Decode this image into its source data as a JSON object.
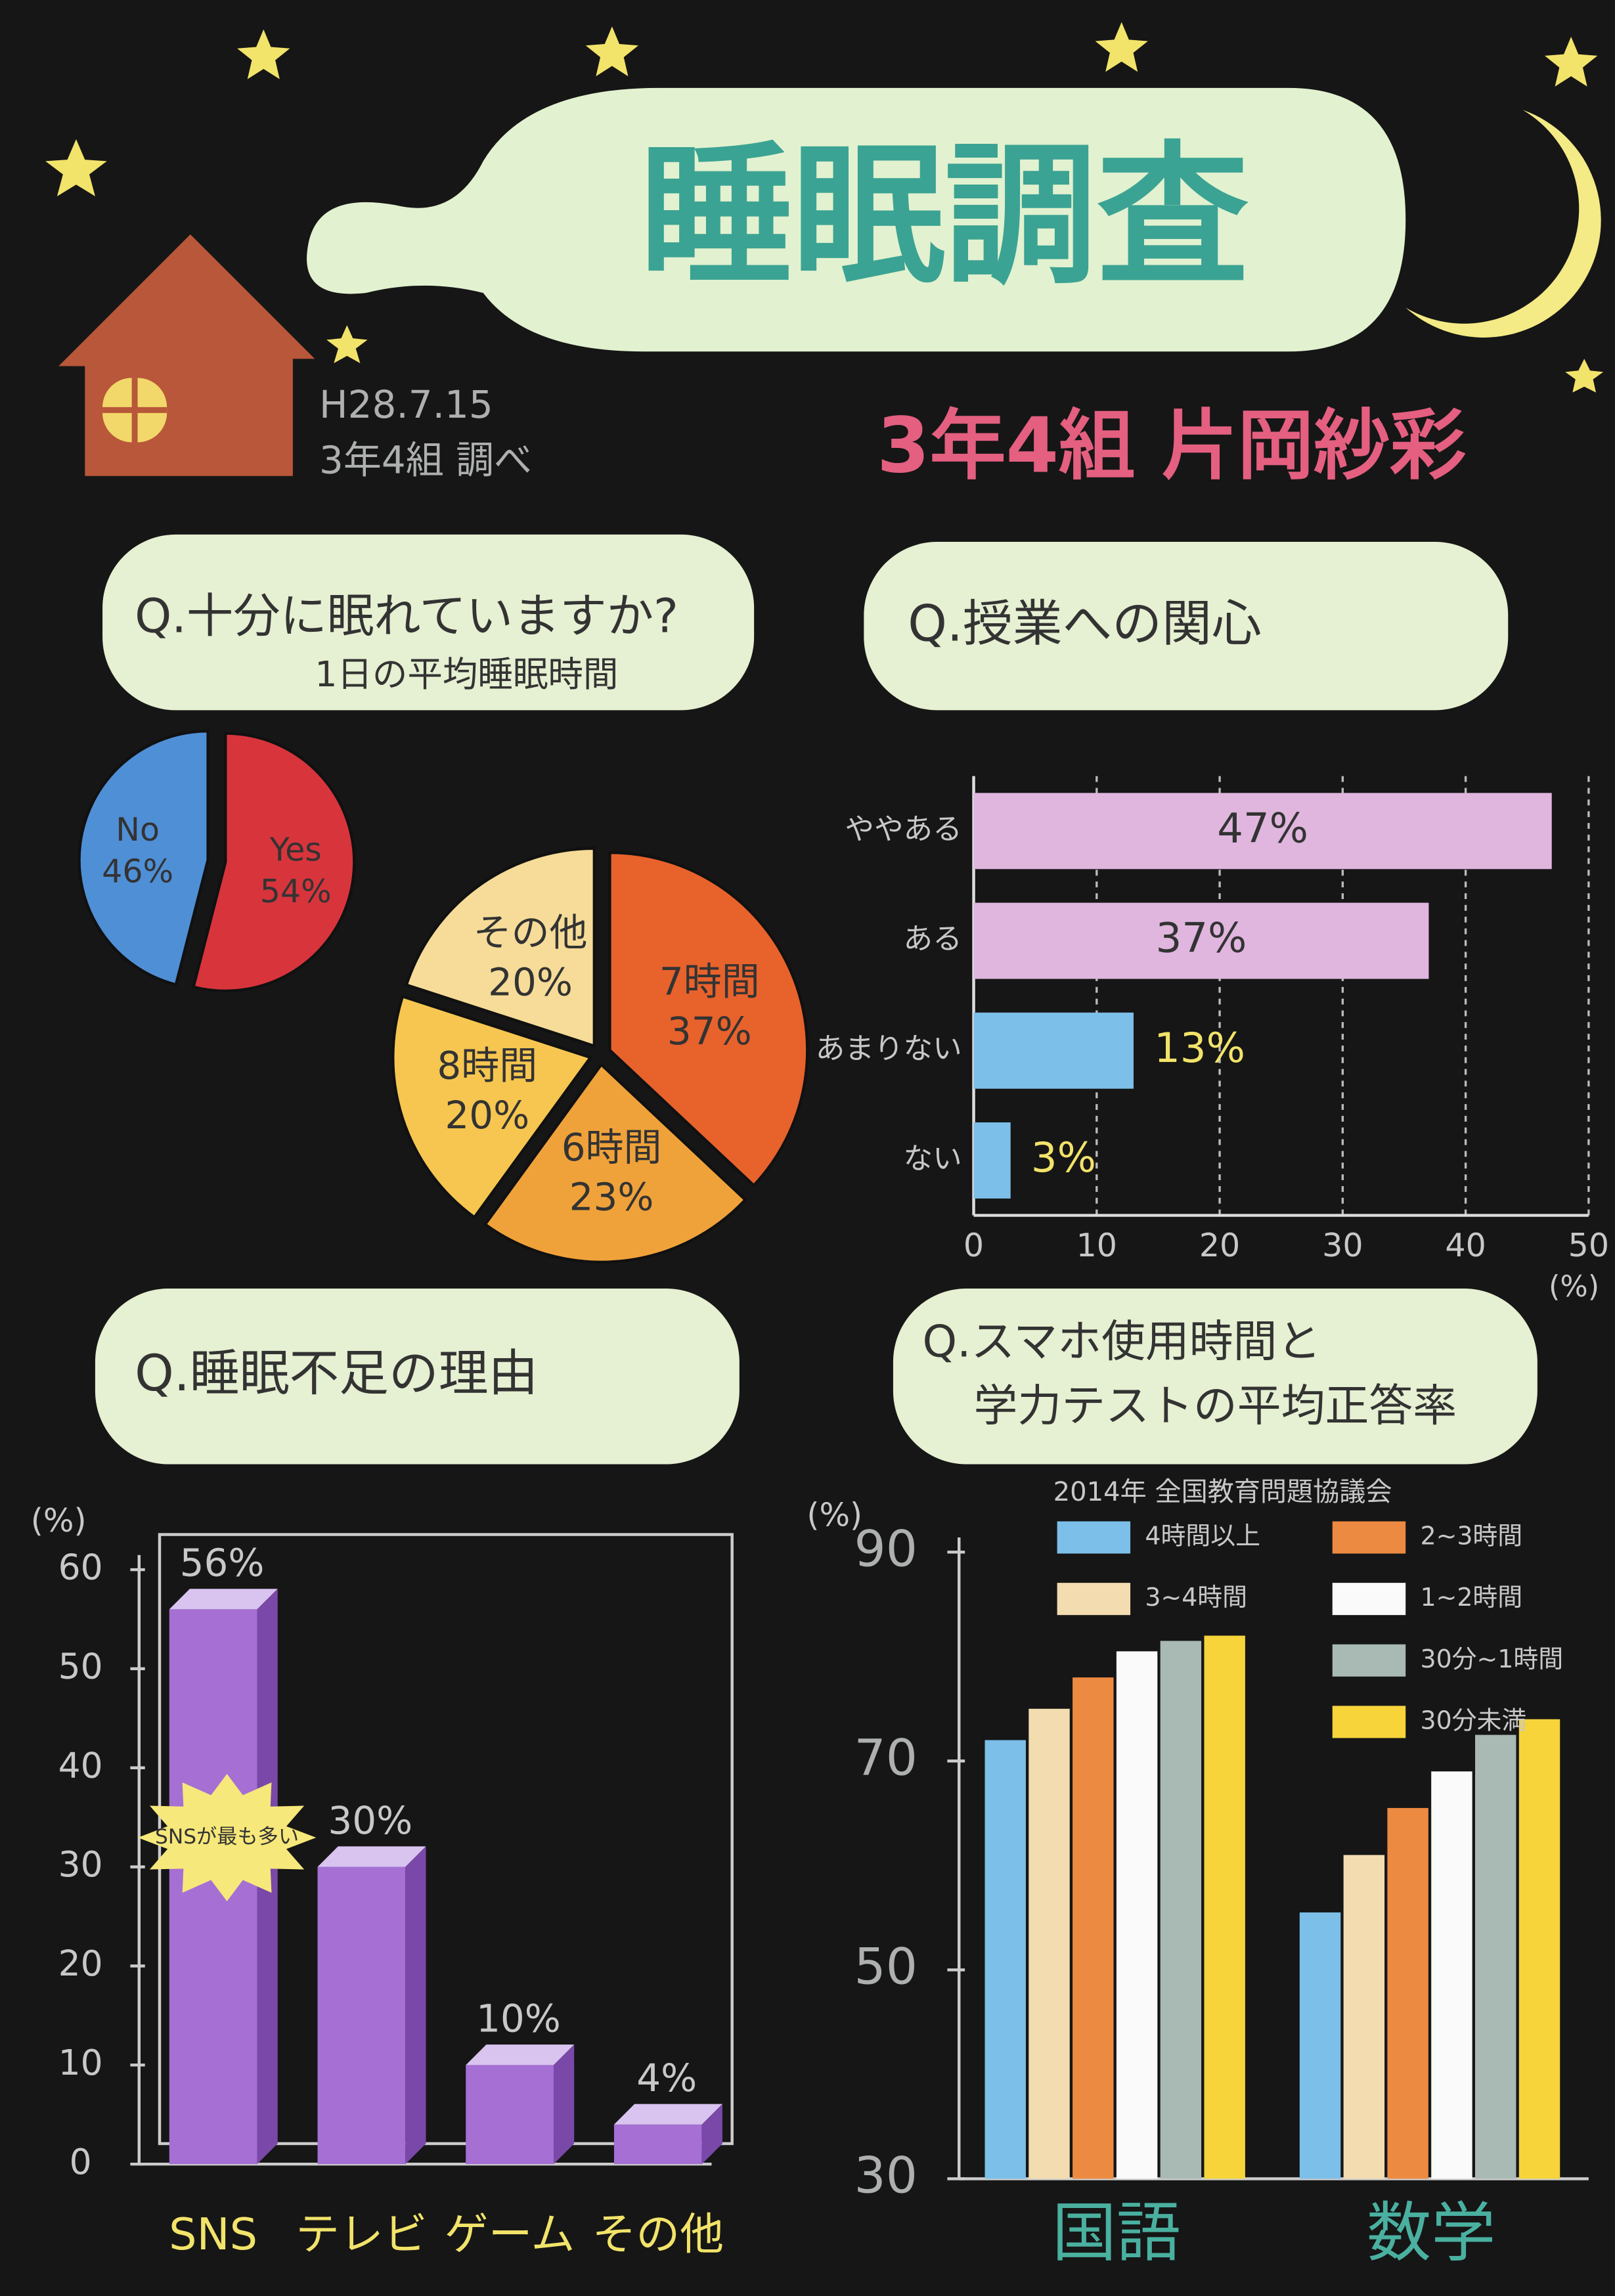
{
  "header": {
    "title": "睡眠調査",
    "date": "H28.7.15",
    "survey": "3年4組 調べ",
    "author": "3年4組 片岡紗彩"
  },
  "chart_data": [
    {
      "type": "pie",
      "title": "Q.十分に眠れていますか?",
      "categories": [
        "Yes",
        "No"
      ],
      "values": [
        54,
        46
      ],
      "value_labels": [
        "54%",
        "46%"
      ],
      "colors": [
        "#d8343c",
        "#4f8fd6"
      ]
    },
    {
      "type": "pie",
      "title": "1日の平均睡眠時間",
      "categories": [
        "7時間",
        "6時間",
        "8時間",
        "その他"
      ],
      "values": [
        37,
        23,
        20,
        20
      ],
      "value_labels": [
        "37%",
        "23%",
        "20%",
        "20%"
      ],
      "colors": [
        "#e8622c",
        "#f0a23a",
        "#f6c650",
        "#f6dc98"
      ]
    },
    {
      "type": "hbar",
      "title": "Q.授業への関心",
      "categories": [
        "ややある",
        "ある",
        "あまりない",
        "ない"
      ],
      "values": [
        47,
        37,
        13,
        3
      ],
      "value_labels": [
        "47%",
        "37%",
        "13%",
        "3%"
      ],
      "colors": [
        "#e0b6de",
        "#e0b6de",
        "#7cbfe8",
        "#7cbfe8"
      ],
      "xlim": [
        0,
        50
      ],
      "xticks": [
        0,
        10,
        20,
        30,
        40,
        50
      ],
      "xlabel": "(%)",
      "grid": true
    },
    {
      "type": "bar3d",
      "title": "Q.睡眠不足の理由",
      "categories": [
        "SNS",
        "テレビ",
        "ゲーム",
        "その他"
      ],
      "values": [
        56,
        30,
        10,
        4
      ],
      "value_labels": [
        "56%",
        "30%",
        "10%",
        "4%"
      ],
      "color": "#a56fd4",
      "ylim": [
        0,
        60
      ],
      "yticks": [
        0,
        10,
        20,
        30,
        40,
        50,
        60
      ],
      "ylabel": "(%)",
      "annotation": "SNSが最も多い"
    },
    {
      "type": "groupbar",
      "title": [
        "Q.スマホ使用時間と",
        "学力テストの平均正答率"
      ],
      "subtitle": "2014年 全国教育問題協議会",
      "categories": [
        "国語",
        "数学"
      ],
      "ylim": [
        30,
        90
      ],
      "yticks": [
        30,
        50,
        70,
        90
      ],
      "ylabel": "(%)",
      "series": [
        {
          "name": "4時間以上",
          "color": "#7cbfe8",
          "values": [
            72,
            55.5
          ]
        },
        {
          "name": "3~4時間",
          "color": "#f2dcb0",
          "values": [
            75,
            61
          ]
        },
        {
          "name": "2~3時間",
          "color": "#ec8a42",
          "values": [
            78,
            65.5
          ]
        },
        {
          "name": "1~2時間",
          "color": "#fafafa",
          "values": [
            80.5,
            69
          ]
        },
        {
          "name": "30分~1時間",
          "color": "#a9b9b4",
          "values": [
            81.5,
            72.5
          ]
        },
        {
          "name": "30分未満",
          "color": "#f6d43a",
          "values": [
            82,
            74
          ]
        }
      ]
    }
  ]
}
